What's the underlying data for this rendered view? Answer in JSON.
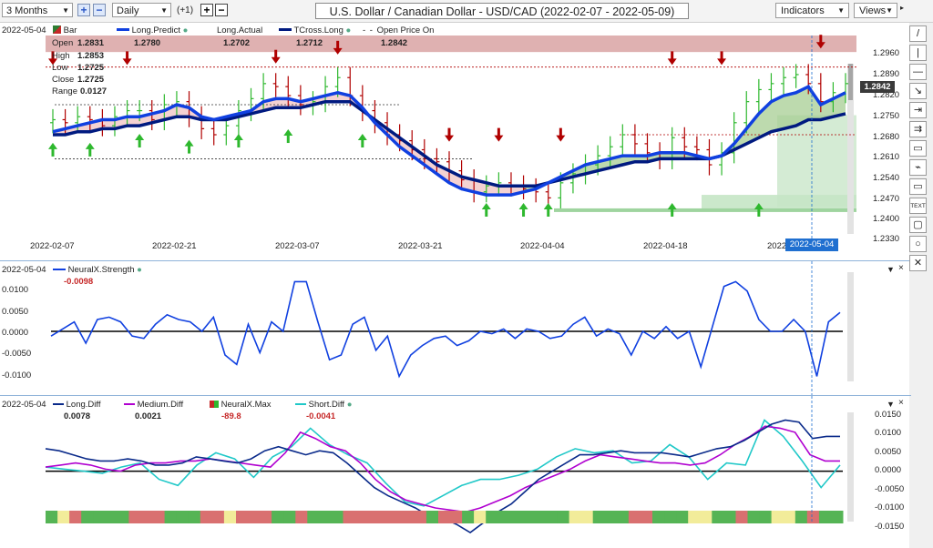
{
  "toolbar": {
    "period": "3 Months",
    "interval": "Daily",
    "offset": "(+1)",
    "title": "U.S. Dollar / Canadian Dollar - USD/CAD (2022-02-07 - 2022-05-09)",
    "indicators_label": "Indicators",
    "views_label": "Views"
  },
  "price_panel": {
    "date": "2022-05-04",
    "legend": [
      {
        "name": "Bar",
        "color": "#2e7d32"
      },
      {
        "name": "Long.Predict",
        "color": "#1040e0"
      },
      {
        "name": "Long.Actual",
        "color": "#333333"
      },
      {
        "name": "TCross.Long",
        "color": "#001a80"
      },
      {
        "name": "Open Price On",
        "color": "#555555"
      }
    ],
    "values": {
      "long_predict": "1.2780",
      "long_actual": "1.2702",
      "tcross_long": "1.2712",
      "open_price_on": "1.2842"
    },
    "ohlc_labels": [
      "Open",
      "High",
      "Low",
      "Close",
      "Range"
    ],
    "ohlc_values": [
      "1.2831",
      "1.2853",
      "1.2725",
      "1.2725",
      "0.0127"
    ],
    "y_ticks": [
      "1.2960",
      "1.2890",
      "1.2820",
      "1.2750",
      "1.2680",
      "1.2610",
      "1.2540",
      "1.2470",
      "1.2400",
      "1.2330"
    ],
    "current_price": "1.2842",
    "x_ticks": [
      "2022-02-07",
      "2022-02-21",
      "2022-03-07",
      "2022-03-21",
      "2022-04-04",
      "2022-04-18",
      "2022"
    ],
    "cursor_date": "2022-05-04"
  },
  "strength_panel": {
    "date": "2022-05-04",
    "name": "NeuralX.Strength",
    "value": "-0.0098",
    "y_ticks": [
      "0.0100",
      "0.0050",
      "0.0000",
      "-0.0050",
      "-0.0100"
    ]
  },
  "diff_panel": {
    "date": "2022-05-04",
    "legend": [
      {
        "name": "Long.Diff",
        "value": "0.0078",
        "color": "#0a2a8a"
      },
      {
        "name": "Medium.Diff",
        "value": "0.0021",
        "color": "#b000d0"
      },
      {
        "name": "NeuralX.Max",
        "value": "-89.8",
        "color": "#c62828"
      },
      {
        "name": "Short.Diff",
        "value": "-0.0041",
        "color": "#20c8c8"
      }
    ],
    "y_ticks": [
      "0.0150",
      "0.0100",
      "0.0050",
      "0.0000",
      "-0.0050",
      "-0.0100",
      "-0.0150"
    ]
  },
  "sidebar_tools": [
    "/",
    "|",
    "—",
    "↘",
    "⇥",
    "⇉",
    "▭",
    "⌁",
    "▭",
    "TEXT",
    "▢",
    "○",
    "✕"
  ],
  "colors": {
    "up": "#2eb82e",
    "down": "#b00000",
    "accent": "#1040e0"
  },
  "chart_data": [
    {
      "type": "candlestick",
      "title": "U.S. Dollar / Canadian Dollar - USD/CAD (2022-02-07 - 2022-05-09)",
      "ylim": [
        1.233,
        1.299
      ],
      "ohlc_dataset": "approximate",
      "long_predict": [
        1.267,
        1.268,
        1.269,
        1.27,
        1.271,
        1.271,
        1.272,
        1.272,
        1.273,
        1.274,
        1.276,
        1.275,
        1.272,
        1.271,
        1.272,
        1.273,
        1.274,
        1.277,
        1.278,
        1.278,
        1.277,
        1.278,
        1.279,
        1.28,
        1.279,
        1.275,
        1.27,
        1.266,
        1.262,
        1.259,
        1.256,
        1.253,
        1.25,
        1.248,
        1.247,
        1.246,
        1.246,
        1.246,
        1.247,
        1.248,
        1.25,
        1.252,
        1.254,
        1.256,
        1.257,
        1.258,
        1.259,
        1.259,
        1.259,
        1.26,
        1.26,
        1.26,
        1.259,
        1.258,
        1.259,
        1.263,
        1.268,
        1.273,
        1.277,
        1.279,
        1.28,
        1.282,
        1.276,
        1.278,
        1.28
      ],
      "tcross_long": [
        1.266,
        1.266,
        1.267,
        1.267,
        1.268,
        1.268,
        1.269,
        1.269,
        1.27,
        1.271,
        1.272,
        1.272,
        1.271,
        1.271,
        1.271,
        1.272,
        1.273,
        1.274,
        1.275,
        1.275,
        1.275,
        1.276,
        1.277,
        1.277,
        1.277,
        1.274,
        1.271,
        1.268,
        1.265,
        1.262,
        1.259,
        1.256,
        1.254,
        1.252,
        1.251,
        1.25,
        1.249,
        1.249,
        1.249,
        1.249,
        1.25,
        1.251,
        1.252,
        1.253,
        1.254,
        1.255,
        1.256,
        1.257,
        1.257,
        1.258,
        1.258,
        1.258,
        1.258,
        1.258,
        1.259,
        1.261,
        1.263,
        1.265,
        1.267,
        1.268,
        1.269,
        1.271,
        1.271,
        1.272,
        1.273
      ],
      "long_actual": [
        1.271,
        1.27,
        1.272,
        1.271,
        1.269,
        1.272,
        1.274,
        1.274,
        1.271,
        1.276,
        1.277,
        1.272,
        1.268,
        1.266,
        1.269,
        1.274,
        1.278,
        1.283,
        1.282,
        1.279,
        1.276,
        1.277,
        1.282,
        1.285,
        1.279,
        1.274,
        1.27,
        1.266,
        1.264,
        1.261,
        1.258,
        1.257,
        1.254,
        1.251,
        1.247,
        1.249,
        1.25,
        1.249,
        1.248,
        1.247,
        1.245,
        1.25,
        1.253,
        1.256,
        1.259,
        1.262,
        1.266,
        1.263,
        1.26,
        1.258,
        1.265,
        1.262,
        1.261,
        1.256,
        1.26,
        1.27,
        1.277,
        1.281,
        1.283,
        1.285,
        1.286,
        1.283,
        1.277,
        1.28,
        1.283
      ]
    },
    {
      "type": "line",
      "series": [
        {
          "name": "NeuralX.Strength",
          "values": [
            -0.001,
            0.0005,
            0.002,
            -0.0025,
            0.0025,
            0.003,
            0.002,
            -0.001,
            -0.0015,
            0.0015,
            0.0035,
            0.0025,
            0.002,
            0.0,
            0.003,
            -0.005,
            -0.007,
            0.0015,
            -0.0045,
            0.002,
            0.0,
            0.0105,
            0.0105,
            0.002,
            -0.006,
            -0.005,
            0.0015,
            0.003,
            -0.004,
            -0.001,
            -0.0095,
            -0.005,
            -0.003,
            -0.0015,
            -0.001,
            -0.003,
            -0.002,
            0.0,
            -0.0005,
            0.0005,
            -0.0015,
            0.0005,
            0.0,
            -0.0015,
            -0.001,
            0.0015,
            0.003,
            -0.001,
            0.0005,
            -0.0005,
            -0.005,
            0.0,
            -0.0015,
            0.001,
            -0.0015,
            0.0,
            -0.0075,
            0.001,
            0.0095,
            0.0105,
            0.0085,
            0.0025,
            0.0,
            0.0,
            0.0025,
            0.0,
            -0.0095,
            0.002,
            0.004
          ]
        }
      ],
      "ylim": [
        -0.0125,
        0.0125
      ]
    },
    {
      "type": "line",
      "series": [
        {
          "name": "Long.Diff",
          "values": [
            0.0055,
            0.005,
            0.004,
            0.003,
            0.0025,
            0.0025,
            0.003,
            0.0025,
            0.0015,
            0.0015,
            0.002,
            0.0035,
            0.003,
            0.0025,
            0.002,
            0.003,
            0.005,
            0.006,
            0.005,
            0.004,
            0.005,
            0.0045,
            0.002,
            -0.001,
            -0.004,
            -0.006,
            -0.0075,
            -0.009,
            -0.011,
            -0.0115,
            -0.013,
            -0.015,
            -0.0125,
            -0.01,
            -0.008,
            -0.005,
            -0.002,
            0.0,
            0.002,
            0.004,
            0.004,
            0.0045,
            0.005,
            0.0045,
            0.0045,
            0.0045,
            0.004,
            0.0035,
            0.0045,
            0.0055,
            0.006,
            0.0075,
            0.0095,
            0.0115,
            0.0125,
            0.012,
            0.008,
            0.0085,
            0.0085
          ]
        },
        {
          "name": "Medium.Diff",
          "values": [
            0.001,
            0.0015,
            0.002,
            0.0015,
            0.0005,
            0.0,
            0.0015,
            0.002,
            0.002,
            0.0025,
            0.0025,
            0.003,
            0.0025,
            0.002,
            0.0015,
            0.001,
            0.0045,
            0.0095,
            0.008,
            0.006,
            0.005,
            0.002,
            -0.002,
            -0.005,
            -0.007,
            -0.008,
            -0.009,
            -0.0095,
            -0.01,
            -0.009,
            -0.0075,
            -0.006,
            -0.004,
            -0.0025,
            -0.001,
            0.0005,
            0.0025,
            0.004,
            0.0035,
            0.003,
            0.0025,
            0.002,
            0.002,
            0.0015,
            0.002,
            0.004,
            0.0065,
            0.0085,
            0.011,
            0.0105,
            0.0095,
            0.004,
            0.0025,
            0.0025
          ]
        },
        {
          "name": "Short.Diff",
          "values": [
            0.001,
            0.0005,
            0.0,
            -0.0005,
            0.001,
            0.002,
            -0.002,
            -0.0035,
            0.0015,
            0.0045,
            0.003,
            -0.0015,
            0.0035,
            0.006,
            0.0105,
            0.0065,
            0.004,
            0.002,
            -0.003,
            -0.0075,
            -0.0085,
            -0.006,
            -0.0035,
            -0.002,
            -0.002,
            -0.001,
            0.0005,
            0.0035,
            0.0055,
            0.0045,
            0.005,
            0.002,
            0.0025,
            0.0065,
            0.0035,
            -0.002,
            0.002,
            0.0015,
            0.0125,
            0.0085,
            0.0025,
            -0.004,
            0.0015
          ]
        }
      ],
      "ylim": [
        -0.015,
        0.0175
      ]
    }
  ]
}
